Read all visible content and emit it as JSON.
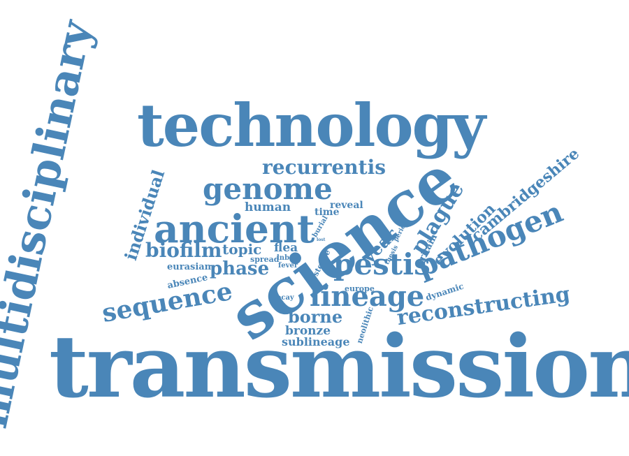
{
  "color": "#4a86b8",
  "words": [
    "transmission",
    "multidisciplinary",
    "technology",
    "science",
    "ancient",
    "genome",
    "pathogen",
    "lineage",
    "pestis",
    "sequence",
    "reconstructing",
    "plague",
    "recurrentis",
    "cambridgeshire",
    "evolution",
    "individual",
    "biofilm",
    "phase",
    "borne",
    "human",
    "topic",
    "year",
    "bronze",
    "sublineage",
    "reveal",
    "time",
    "flea",
    "eurasian",
    "absence",
    "spread",
    "lnba",
    "fever",
    "burial",
    "lost",
    "period",
    "thesis",
    "steppe",
    "britain",
    "europe",
    "decay",
    "dynamic",
    "neolithic"
  ]
}
